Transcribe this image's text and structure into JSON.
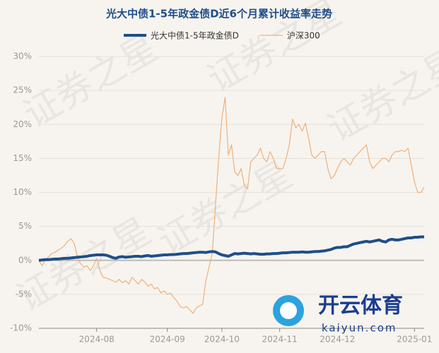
{
  "chart_data": {
    "type": "line",
    "title": "光大中债1-5年政金债D近6个月累计收益率走势",
    "watermark": "证券之星",
    "logo": {
      "name": "开云体育",
      "site": "kaiyun.com"
    },
    "categories": [
      null,
      null,
      null,
      null,
      null,
      null,
      null,
      null,
      null,
      null,
      null,
      null,
      null,
      null,
      null,
      null,
      null,
      null,
      "2024-08",
      null,
      null,
      null,
      null,
      null,
      null,
      null,
      null,
      null,
      null,
      null,
      null,
      null,
      null,
      null,
      null,
      null,
      null,
      null,
      null,
      null,
      "2024-09",
      null,
      null,
      null,
      null,
      null,
      null,
      null,
      null,
      null,
      null,
      null,
      null,
      null,
      null,
      null,
      null,
      "2024-10",
      null,
      null,
      null,
      null,
      null,
      null,
      null,
      null,
      null,
      null,
      null,
      null,
      null,
      null,
      null,
      null,
      null,
      "2024-11",
      null,
      null,
      null,
      null,
      null,
      null,
      null,
      null,
      null,
      null,
      null,
      null,
      null,
      null,
      null,
      null,
      null,
      "2024-12",
      null,
      null,
      null,
      null,
      null,
      null,
      null,
      null,
      null,
      null,
      null,
      null,
      null,
      null,
      null,
      null,
      null,
      null,
      null,
      null,
      null,
      null,
      null,
      "2025-01",
      null,
      null,
      null
    ],
    "series": [
      {
        "name": "光大中债1-5年政金债D",
        "color": "#1f4e89",
        "width": 4,
        "values": [
          0,
          0.05,
          0.1,
          0.1,
          0.15,
          0.2,
          0.2,
          0.25,
          0.3,
          0.3,
          0.35,
          0.4,
          0.45,
          0.5,
          0.55,
          0.6,
          0.7,
          0.75,
          0.8,
          0.8,
          0.8,
          0.75,
          0.6,
          0.4,
          0.3,
          0.5,
          0.55,
          0.45,
          0.5,
          0.55,
          0.6,
          0.6,
          0.55,
          0.65,
          0.7,
          0.6,
          0.65,
          0.7,
          0.75,
          0.8,
          0.8,
          0.85,
          0.85,
          0.9,
          0.95,
          1.0,
          1.0,
          1.05,
          1.1,
          1.15,
          1.2,
          1.2,
          1.15,
          1.25,
          1.3,
          1.25,
          1.0,
          0.8,
          0.7,
          0.6,
          0.8,
          1.0,
          0.95,
          1.0,
          1.05,
          1.0,
          0.95,
          1.0,
          0.95,
          0.9,
          0.9,
          0.95,
          0.95,
          1.0,
          1.0,
          1.05,
          1.1,
          1.1,
          1.15,
          1.2,
          1.2,
          1.2,
          1.25,
          1.2,
          1.2,
          1.25,
          1.3,
          1.3,
          1.35,
          1.4,
          1.5,
          1.6,
          1.8,
          1.9,
          1.9,
          2.0,
          2.0,
          2.2,
          2.4,
          2.5,
          2.6,
          2.7,
          2.8,
          2.7,
          2.8,
          2.9,
          3.0,
          2.8,
          2.7,
          3.0,
          3.1,
          3.0,
          3.0,
          3.1,
          3.2,
          3.3,
          3.3,
          3.4,
          3.4,
          3.45,
          3.45
        ]
      },
      {
        "name": "沪深300",
        "color": "#f0b07a",
        "width": 1.2,
        "values": [
          0,
          -0.8,
          0,
          0.5,
          1.0,
          1.2,
          1.5,
          1.8,
          2.2,
          2.8,
          3.2,
          2.5,
          0.5,
          -0.5,
          -1.0,
          -0.8,
          -1.5,
          -0.8,
          0.3,
          -1.5,
          -2.5,
          -2.6,
          -2.8,
          -3.0,
          -3.2,
          -2.8,
          -3.3,
          -3.0,
          -3.5,
          -2.5,
          -3.0,
          -3.5,
          -2.8,
          -3.2,
          -3.8,
          -3.5,
          -4.2,
          -4.0,
          -4.8,
          -4.5,
          -5.0,
          -4.8,
          -5.5,
          -6.0,
          -6.8,
          -7.0,
          -6.8,
          -7.3,
          -7.8,
          -7.0,
          -6.7,
          -6.5,
          -3.0,
          -1.0,
          1.0,
          8.0,
          15.0,
          21.0,
          24.0,
          15.5,
          17.0,
          13.0,
          12.5,
          13.5,
          11.0,
          10.5,
          14.5,
          15.0,
          15.5,
          16.5,
          15.0,
          14.5,
          16.0,
          15.0,
          13.5,
          13.5,
          13.5,
          15.0,
          17.0,
          20.8,
          19.5,
          20.0,
          19.0,
          20.2,
          18.0,
          15.5,
          15.0,
          15.5,
          16.0,
          16.0,
          13.5,
          12.0,
          12.5,
          13.5,
          14.5,
          15.0,
          14.5,
          14.0,
          15.0,
          15.5,
          16.0,
          16.5,
          17.0,
          14.5,
          13.5,
          14.0,
          14.5,
          15.0,
          15.0,
          14.5,
          15.5,
          16.0,
          16.0,
          16.2,
          16.0,
          16.5,
          14.0,
          11.5,
          10.0,
          10.0,
          10.8
        ]
      }
    ],
    "ylim": [
      -10,
      30
    ],
    "yticks": [
      {
        "value": -10,
        "label": "-10%"
      },
      {
        "value": -5,
        "label": "-5%"
      },
      {
        "value": 0,
        "label": "0%"
      },
      {
        "value": 5,
        "label": "5%"
      },
      {
        "value": 10,
        "label": "10%"
      },
      {
        "value": 15,
        "label": "15%"
      },
      {
        "value": 20,
        "label": "20%"
      },
      {
        "value": 25,
        "label": "25%"
      },
      {
        "value": 30,
        "label": "30%"
      }
    ],
    "grid": true,
    "legend": "top"
  }
}
